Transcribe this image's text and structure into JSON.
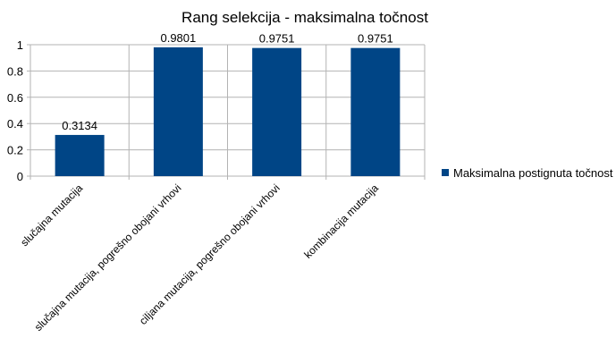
{
  "chart_data": {
    "type": "bar",
    "title": "Rang selekcija - maksimalna točnost",
    "xlabel": "",
    "ylabel": "",
    "categories": [
      "slučajna mutacija",
      "slučajna mutacija, pogrešno obojani vrhovi",
      "ciljana mutacija, pogrešno obojani vrhovi",
      "kombinacija mutacija"
    ],
    "series": [
      {
        "name": "Maksimalna postignuta točnost",
        "values": [
          0.3134,
          0.9801,
          0.9751,
          0.9751
        ],
        "color": "#004586"
      }
    ],
    "data_labels": [
      "0.3134",
      "0.9801",
      "0.9751",
      "0.9751"
    ],
    "ylim": [
      0,
      1
    ],
    "yticks": [
      0,
      0.2,
      0.4,
      0.6,
      0.8,
      1
    ],
    "ytick_labels": [
      "0",
      "0.2",
      "0.4",
      "0.6",
      "0.8",
      "1"
    ],
    "grid": true,
    "gridline_color": "#b3b3b3",
    "legend_position": "right"
  }
}
